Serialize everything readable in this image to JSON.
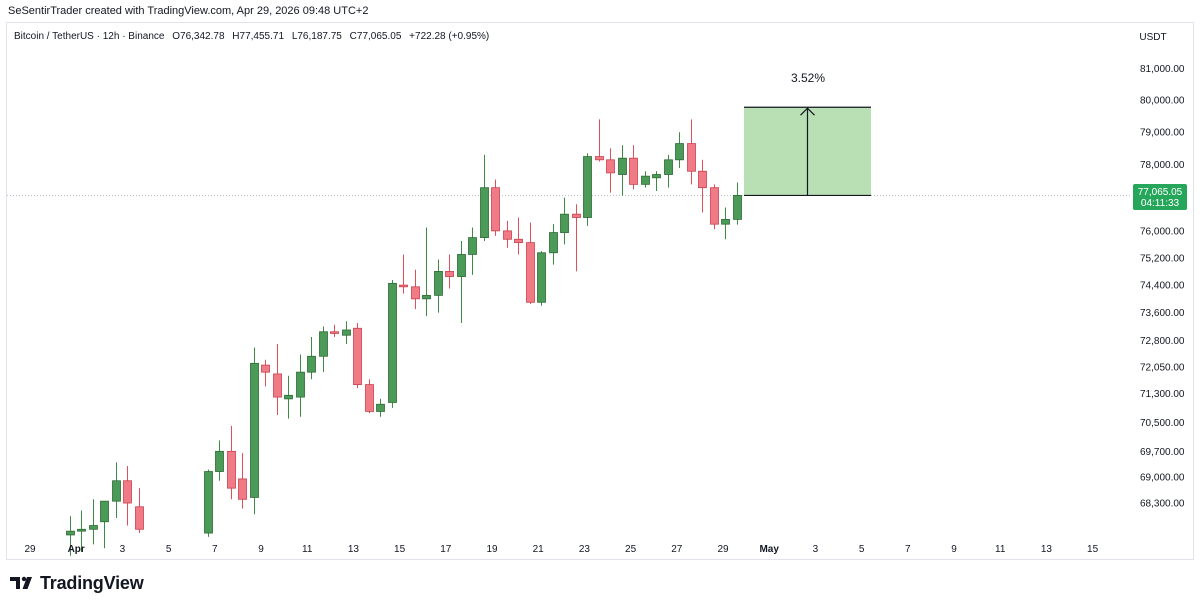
{
  "header": {
    "text": "SeSentirTrader created with TradingView.com, Apr 29, 2026 09:48 UTC+2"
  },
  "footer": {
    "brand": "TradingView"
  },
  "legend": {
    "symbol": "Bitcoin / TetherUS · 12h · Binance",
    "open_label": "O",
    "open": "76,342.78",
    "high_label": "H",
    "high": "77,455.71",
    "low_label": "L",
    "low": "76,187.75",
    "close_label": "C",
    "close": "77,065.05",
    "change": "+722.28 (+0.95%)"
  },
  "price_scale": {
    "currency": "USDT",
    "last_price": "77,065.05",
    "countdown": "04:11:33"
  },
  "colors": {
    "up": "#4caf50",
    "down": "#f7525f",
    "up_fill": "#4c9a57",
    "down_fill": "#f07a85",
    "last_price_tag": "#26a65b",
    "target_box": "#b9e0b5"
  },
  "annotation": {
    "label": "3.52%"
  },
  "chart_data": {
    "type": "candlestick",
    "timeframe": "12h",
    "y_scale": "log",
    "ylim": [
      67900,
      81400
    ],
    "x_ticks": [
      "29",
      "Apr",
      "3",
      "5",
      "7",
      "9",
      "11",
      "13",
      "15",
      "17",
      "19",
      "21",
      "23",
      "25",
      "27",
      "29",
      "May",
      "3",
      "5",
      "7",
      "9",
      "11",
      "13",
      "15"
    ],
    "y_ticks": [
      "81,000.00",
      "80,000.00",
      "79,000.00",
      "78,000.00",
      "76,000.00",
      "75,200.00",
      "74,400.00",
      "73,600.00",
      "72,800.00",
      "72,050.00",
      "71,300.00",
      "70,500.00",
      "69,700.00",
      "69,000.00",
      "68,300.00"
    ],
    "candles": [
      {
        "date": "Mar 31",
        "o": 67450,
        "h": 67950,
        "l": 66900,
        "c": 67550
      },
      {
        "date": "Mar 31",
        "o": 67550,
        "h": 68100,
        "l": 67000,
        "c": 67600
      },
      {
        "date": "Apr 1",
        "o": 67600,
        "h": 68400,
        "l": 67200,
        "c": 67700
      },
      {
        "date": "Apr 1",
        "o": 67800,
        "h": 68300,
        "l": 67100,
        "c": 68350
      },
      {
        "date": "Apr 2",
        "o": 68350,
        "h": 69400,
        "l": 67900,
        "c": 68900
      },
      {
        "date": "Apr 2",
        "o": 68900,
        "h": 69300,
        "l": 67700,
        "c": 68300
      },
      {
        "date": "Apr 3",
        "o": 68200,
        "h": 68700,
        "l": 67500,
        "c": 67600
      },
      {
        "date": "Apr 6",
        "o": 67500,
        "h": 69200,
        "l": 67400,
        "c": 69150
      },
      {
        "date": "Apr 6",
        "o": 69150,
        "h": 70000,
        "l": 68900,
        "c": 69700
      },
      {
        "date": "Apr 7",
        "o": 69700,
        "h": 70400,
        "l": 68400,
        "c": 68700
      },
      {
        "date": "Apr 7",
        "o": 68950,
        "h": 69650,
        "l": 68150,
        "c": 68400
      },
      {
        "date": "Apr 8",
        "o": 68450,
        "h": 72600,
        "l": 68000,
        "c": 72150
      },
      {
        "date": "Apr 8",
        "o": 72100,
        "h": 72250,
        "l": 71500,
        "c": 71900
      },
      {
        "date": "Apr 9",
        "o": 71850,
        "h": 72700,
        "l": 70700,
        "c": 71200
      },
      {
        "date": "Apr 9",
        "o": 71150,
        "h": 71800,
        "l": 70600,
        "c": 71250
      },
      {
        "date": "Apr 10",
        "o": 71200,
        "h": 72400,
        "l": 70650,
        "c": 71900
      },
      {
        "date": "Apr 10",
        "o": 71900,
        "h": 72900,
        "l": 71700,
        "c": 72350
      },
      {
        "date": "Apr 11",
        "o": 72350,
        "h": 73200,
        "l": 71900,
        "c": 73050
      },
      {
        "date": "Apr 11",
        "o": 73050,
        "h": 73250,
        "l": 72900,
        "c": 73000
      },
      {
        "date": "Apr 12",
        "o": 72950,
        "h": 73350,
        "l": 72700,
        "c": 73100
      },
      {
        "date": "Apr 12",
        "o": 73150,
        "h": 73300,
        "l": 71450,
        "c": 71550
      },
      {
        "date": "Apr 13",
        "o": 71550,
        "h": 71700,
        "l": 70750,
        "c": 70800
      },
      {
        "date": "Apr 13",
        "o": 70800,
        "h": 71150,
        "l": 70650,
        "c": 71000
      },
      {
        "date": "Apr 14",
        "o": 71050,
        "h": 74550,
        "l": 70900,
        "c": 74450
      },
      {
        "date": "Apr 14",
        "o": 74400,
        "h": 75300,
        "l": 74150,
        "c": 74350
      },
      {
        "date": "Apr 15",
        "o": 74350,
        "h": 74850,
        "l": 73700,
        "c": 74000
      },
      {
        "date": "Apr 15",
        "o": 74000,
        "h": 76100,
        "l": 73500,
        "c": 74100
      },
      {
        "date": "Apr 16",
        "o": 74100,
        "h": 75150,
        "l": 73600,
        "c": 74800
      },
      {
        "date": "Apr 16",
        "o": 74800,
        "h": 75300,
        "l": 74300,
        "c": 74650
      },
      {
        "date": "Apr 17",
        "o": 74650,
        "h": 75700,
        "l": 73300,
        "c": 75300
      },
      {
        "date": "Apr 17",
        "o": 75300,
        "h": 76100,
        "l": 74700,
        "c": 75800
      },
      {
        "date": "Apr 18",
        "o": 75800,
        "h": 78300,
        "l": 75700,
        "c": 77300
      },
      {
        "date": "Apr 18",
        "o": 77300,
        "h": 77550,
        "l": 75850,
        "c": 76000
      },
      {
        "date": "Apr 19",
        "o": 76000,
        "h": 76300,
        "l": 75500,
        "c": 75750
      },
      {
        "date": "Apr 19",
        "o": 75750,
        "h": 76400,
        "l": 75300,
        "c": 75650
      },
      {
        "date": "Apr 20",
        "o": 75650,
        "h": 76250,
        "l": 73850,
        "c": 73900
      },
      {
        "date": "Apr 20",
        "o": 73900,
        "h": 75400,
        "l": 73800,
        "c": 75350
      },
      {
        "date": "Apr 21",
        "o": 75350,
        "h": 76200,
        "l": 75000,
        "c": 75950
      },
      {
        "date": "Apr 21",
        "o": 75950,
        "h": 77000,
        "l": 75600,
        "c": 76500
      },
      {
        "date": "Apr 22",
        "o": 76500,
        "h": 76800,
        "l": 74800,
        "c": 76400
      },
      {
        "date": "Apr 22",
        "o": 76400,
        "h": 78350,
        "l": 76150,
        "c": 78250
      },
      {
        "date": "Apr 23",
        "o": 78250,
        "h": 79400,
        "l": 78100,
        "c": 78150
      },
      {
        "date": "Apr 23",
        "o": 78150,
        "h": 78500,
        "l": 77150,
        "c": 77750
      },
      {
        "date": "Apr 24",
        "o": 77700,
        "h": 78600,
        "l": 77050,
        "c": 78200
      },
      {
        "date": "Apr 24",
        "o": 78200,
        "h": 78600,
        "l": 77250,
        "c": 77400
      },
      {
        "date": "Apr 25",
        "o": 77400,
        "h": 77800,
        "l": 77300,
        "c": 77650
      },
      {
        "date": "Apr 25",
        "o": 77600,
        "h": 77800,
        "l": 77200,
        "c": 77700
      },
      {
        "date": "Apr 26",
        "o": 77700,
        "h": 78300,
        "l": 77300,
        "c": 78150
      },
      {
        "date": "Apr 26",
        "o": 78150,
        "h": 79000,
        "l": 77900,
        "c": 78650
      },
      {
        "date": "Apr 27",
        "o": 78650,
        "h": 79400,
        "l": 77400,
        "c": 77800
      },
      {
        "date": "Apr 27",
        "o": 77800,
        "h": 78150,
        "l": 76550,
        "c": 77300
      },
      {
        "date": "Apr 28",
        "o": 77300,
        "h": 77400,
        "l": 76050,
        "c": 76200
      },
      {
        "date": "Apr 28",
        "o": 76200,
        "h": 76700,
        "l": 75750,
        "c": 76342.78
      },
      {
        "date": "Apr 29",
        "o": 76342.78,
        "h": 77455.71,
        "l": 76187.75,
        "c": 77065.05
      }
    ],
    "target": {
      "from_price": 77065.05,
      "to_price": 79780,
      "percent": "3.52%"
    }
  }
}
